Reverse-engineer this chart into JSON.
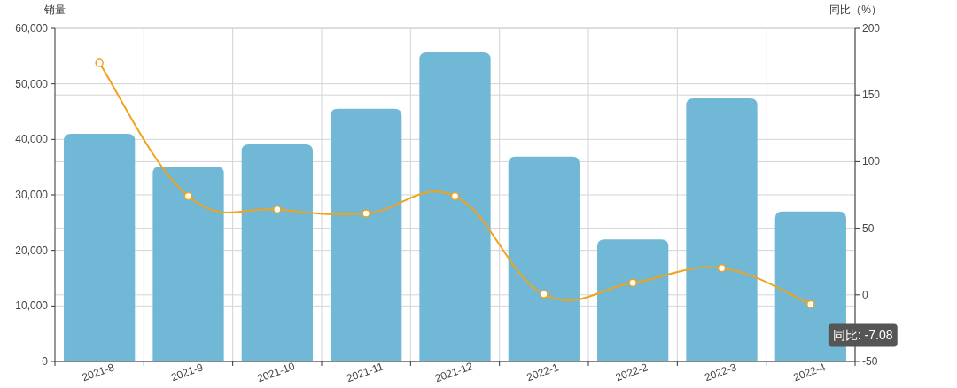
{
  "chart_data": {
    "type": "bar",
    "ylabel": "销量",
    "y2label": "同比（%）",
    "categories": [
      "2021-8",
      "2021-9",
      "2021-10",
      "2021-11",
      "2021-12",
      "2022-1",
      "2022-2",
      "2022-3",
      "2022-4"
    ],
    "series": [
      {
        "color": "#70b8d6",
        "values": [
          41000,
          35100,
          39100,
          45500,
          55700,
          36900,
          22000,
          47400,
          27000
        ]
      },
      {
        "type": "line",
        "axis": "y2",
        "color": "#f0a31c",
        "marker": "circle",
        "values": [
          174,
          74,
          64,
          61,
          74,
          0.5,
          9,
          20,
          -7.08
        ]
      }
    ],
    "ylim": [
      0,
      60000
    ],
    "yticks": [
      {
        "value": 0,
        "label": "0"
      },
      {
        "value": 10000,
        "label": "10,000"
      },
      {
        "value": 20000,
        "label": "20,000"
      },
      {
        "value": 30000,
        "label": "30,000"
      },
      {
        "value": 40000,
        "label": "40,000"
      },
      {
        "value": 50000,
        "label": "50,000"
      },
      {
        "value": 60000,
        "label": "60,000"
      }
    ],
    "y2lim": [
      -50,
      200
    ],
    "y2ticks": [
      -50,
      0,
      50,
      100,
      150,
      200
    ],
    "grid": true,
    "annotations": [
      {
        "text": "同比: -7.08",
        "x": "2022-4",
        "y": -7.08
      }
    ]
  }
}
